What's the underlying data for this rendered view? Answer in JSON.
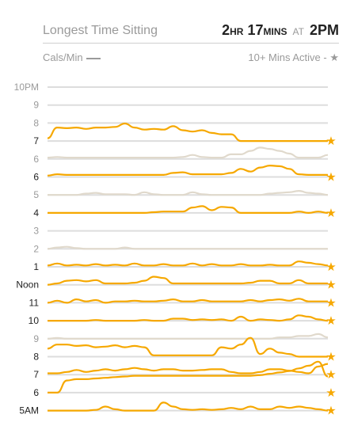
{
  "header": {
    "title": "Longest Time Sitting",
    "value_hr": "2",
    "value_hr_unit": "HR",
    "value_min": "17",
    "value_min_unit": "MINS",
    "value_at": "AT",
    "value_time": "2PM"
  },
  "legend": {
    "left_label": "Cals/Min",
    "right_label": "10+ Mins Active -",
    "right_icon": "star-icon"
  },
  "colors": {
    "active": "#f6a800",
    "inactive": "#e0d9cc",
    "grid": "#dddddd",
    "star": "#f6a800"
  },
  "chart_data": {
    "type": "line",
    "title": "Longest Time Sitting",
    "ylabel": "",
    "xlabel": "",
    "grid": true,
    "rows": [
      {
        "label": "10PM",
        "active": false,
        "star": false,
        "values": []
      },
      {
        "label": "9",
        "active": false,
        "star": false,
        "values": []
      },
      {
        "label": "8",
        "active": false,
        "star": false,
        "values": []
      },
      {
        "label": "7",
        "active": true,
        "star": true,
        "values": [
          0.2,
          1.0,
          0.95,
          1.0,
          0.9,
          1.0,
          1.0,
          1.05,
          1.3,
          1.0,
          0.85,
          0.9,
          0.85,
          1.1,
          0.8,
          0.7,
          0.8,
          0.6,
          0.5,
          0.5,
          0.0,
          0.0,
          0.0,
          0.0,
          0.0,
          0.0,
          0.0,
          0.0,
          0.0,
          0.0
        ]
      },
      {
        "label": "6",
        "active": false,
        "star": false,
        "values": [
          0.1,
          0.15,
          0.1,
          0.1,
          0.1,
          0.1,
          0.1,
          0.1,
          0.1,
          0.1,
          0.1,
          0.1,
          0.1,
          0.1,
          0.15,
          0.3,
          0.15,
          0.1,
          0.1,
          0.35,
          0.35,
          0.6,
          0.85,
          0.75,
          0.6,
          0.4,
          0.1,
          0.1,
          0.1,
          0.3
        ]
      },
      {
        "label": "6",
        "active": true,
        "star": true,
        "values": [
          0.1,
          0.2,
          0.15,
          0.15,
          0.15,
          0.15,
          0.15,
          0.15,
          0.15,
          0.15,
          0.15,
          0.15,
          0.15,
          0.3,
          0.35,
          0.2,
          0.2,
          0.2,
          0.2,
          0.3,
          0.6,
          0.4,
          0.7,
          0.85,
          0.8,
          0.6,
          0.2,
          0.15,
          0.15,
          0.15
        ]
      },
      {
        "label": "5",
        "active": false,
        "star": false,
        "values": [
          0.0,
          0.0,
          0.0,
          0.0,
          0.1,
          0.15,
          0.05,
          0.05,
          0.05,
          0.0,
          0.2,
          0.05,
          0.0,
          0.0,
          0.0,
          0.2,
          0.05,
          0.0,
          0.0,
          0.0,
          0.0,
          0.0,
          0.0,
          0.1,
          0.15,
          0.2,
          0.3,
          0.15,
          0.1,
          0.0
        ]
      },
      {
        "label": "4",
        "active": true,
        "star": true,
        "values": [
          0.0,
          0.0,
          0.0,
          0.0,
          0.0,
          0.0,
          0.0,
          0.0,
          0.0,
          0.0,
          0.0,
          0.05,
          0.1,
          0.1,
          0.1,
          0.4,
          0.5,
          0.2,
          0.45,
          0.4,
          0.0,
          0.0,
          0.0,
          0.0,
          0.0,
          0.0,
          0.1,
          0.0,
          0.1,
          0.0
        ]
      },
      {
        "label": "3",
        "active": false,
        "star": false,
        "values": []
      },
      {
        "label": "2",
        "active": false,
        "star": false,
        "values": [
          0.0,
          0.1,
          0.15,
          0.05,
          0.0,
          0.0,
          0.0,
          0.0,
          0.1,
          0.0,
          0.0,
          0.0,
          0.0,
          0.0,
          0.0,
          0.0,
          0.0,
          0.0,
          0.0,
          0.0,
          0.0,
          0.0,
          0.0,
          0.0,
          0.0,
          0.0,
          0.0,
          0.0,
          0.0,
          0.0
        ]
      },
      {
        "label": "1",
        "active": true,
        "star": true,
        "values": [
          0.1,
          0.25,
          0.1,
          0.15,
          0.1,
          0.2,
          0.1,
          0.15,
          0.1,
          0.25,
          0.1,
          0.1,
          0.2,
          0.1,
          0.1,
          0.25,
          0.1,
          0.2,
          0.1,
          0.1,
          0.2,
          0.1,
          0.1,
          0.15,
          0.1,
          0.1,
          0.4,
          0.3,
          0.2,
          0.1
        ]
      },
      {
        "label": "Noon",
        "active": true,
        "star": true,
        "values": [
          0.0,
          0.1,
          0.3,
          0.35,
          0.25,
          0.35,
          0.1,
          0.1,
          0.1,
          0.15,
          0.3,
          0.6,
          0.5,
          0.1,
          0.1,
          0.1,
          0.1,
          0.1,
          0.1,
          0.1,
          0.1,
          0.15,
          0.3,
          0.3,
          0.1,
          0.1,
          0.35,
          0.1,
          0.1,
          0.1
        ]
      },
      {
        "label": "11",
        "active": true,
        "star": true,
        "values": [
          0.0,
          0.15,
          0.0,
          0.25,
          0.1,
          0.2,
          0.0,
          0.1,
          0.1,
          0.15,
          0.1,
          0.1,
          0.15,
          0.25,
          0.1,
          0.1,
          0.2,
          0.1,
          0.1,
          0.1,
          0.1,
          0.2,
          0.1,
          0.2,
          0.25,
          0.15,
          0.3,
          0.1,
          0.1,
          0.1
        ]
      },
      {
        "label": "10",
        "active": true,
        "star": true,
        "values": [
          0.0,
          0.0,
          0.0,
          0.0,
          0.0,
          0.05,
          0.0,
          0.0,
          0.0,
          0.0,
          0.05,
          0.0,
          0.0,
          0.15,
          0.15,
          0.05,
          0.1,
          0.05,
          0.1,
          0.0,
          0.3,
          0.0,
          0.1,
          0.05,
          0.0,
          0.1,
          0.4,
          0.3,
          0.1,
          0.0
        ]
      },
      {
        "label": "9",
        "active": false,
        "star": false,
        "values": [
          0.0,
          0.05,
          0.0,
          0.0,
          0.0,
          0.0,
          0.0,
          0.0,
          0.0,
          0.0,
          0.0,
          0.0,
          0.0,
          0.0,
          0.0,
          0.0,
          0.0,
          0.0,
          0.0,
          0.0,
          0.0,
          0.0,
          0.0,
          0.0,
          0.1,
          0.1,
          0.2,
          0.2,
          0.35,
          0.1
        ]
      },
      {
        "label": "8",
        "active": true,
        "star": true,
        "values": [
          0.6,
          0.9,
          0.9,
          0.8,
          0.85,
          0.7,
          0.75,
          0.85,
          0.7,
          0.8,
          0.7,
          0.1,
          0.1,
          0.1,
          0.1,
          0.1,
          0.1,
          0.1,
          0.7,
          0.6,
          0.9,
          1.4,
          0.2,
          0.6,
          0.3,
          0.2,
          0.0,
          0.0,
          0.0,
          0.0
        ]
      },
      {
        "label": "7",
        "active": true,
        "star": true,
        "values": [
          0.1,
          0.1,
          0.2,
          0.35,
          0.2,
          0.3,
          0.4,
          0.3,
          0.4,
          0.5,
          0.4,
          0.3,
          0.4,
          0.4,
          0.3,
          0.3,
          0.35,
          0.4,
          0.4,
          0.2,
          0.1,
          0.1,
          0.2,
          0.4,
          0.4,
          0.3,
          0.2,
          0.1,
          0.6,
          0.8
        ]
      },
      {
        "label": "6",
        "active": true,
        "star": true,
        "values": [
          0.0,
          0.0,
          0.9,
          1.0,
          1.0,
          1.05,
          1.1,
          1.15,
          1.2,
          1.25,
          1.25,
          1.25,
          1.25,
          1.25,
          1.25,
          1.25,
          1.25,
          1.25,
          1.25,
          1.25,
          1.25,
          1.25,
          1.3,
          1.4,
          1.5,
          1.6,
          1.8,
          2.0,
          2.3,
          1.2
        ]
      },
      {
        "label": "5AM",
        "active": true,
        "star": true,
        "values": [
          0.0,
          0.0,
          0.0,
          0.0,
          0.0,
          0.05,
          0.3,
          0.1,
          0.0,
          0.0,
          0.0,
          0.0,
          0.6,
          0.3,
          0.1,
          0.05,
          0.1,
          0.05,
          0.1,
          0.2,
          0.1,
          0.3,
          0.1,
          0.1,
          0.3,
          0.2,
          0.3,
          0.2,
          0.1,
          0.0
        ]
      }
    ]
  }
}
